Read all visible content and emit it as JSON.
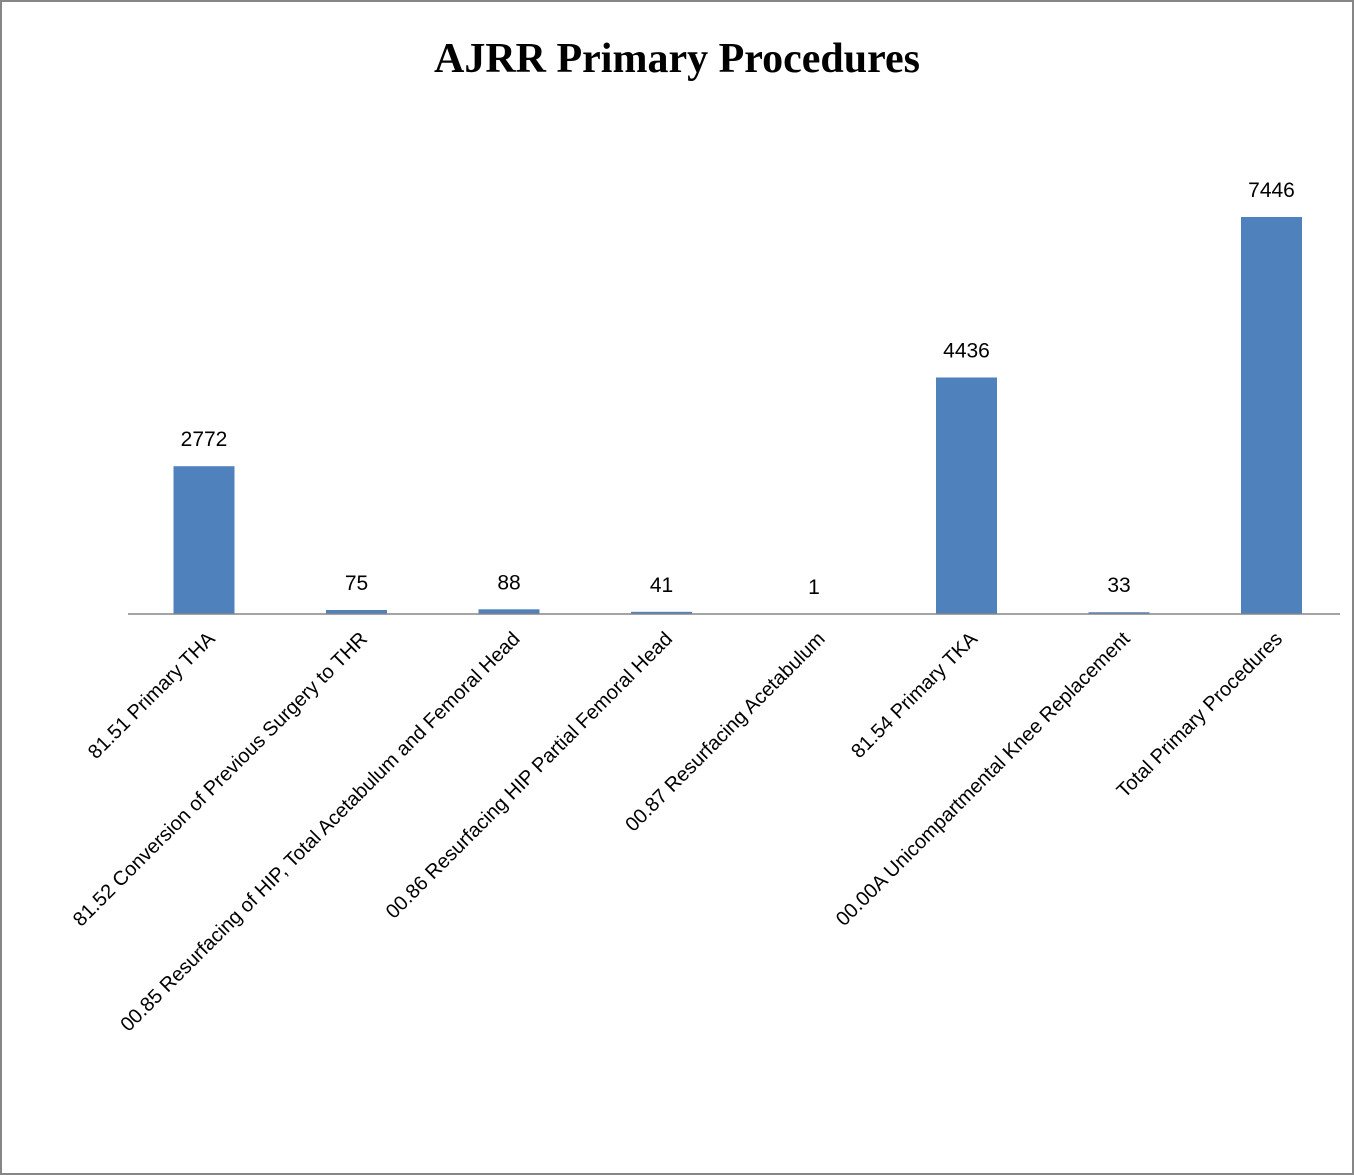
{
  "chart_data": {
    "type": "bar",
    "title": "AJRR Primary Procedures",
    "categories": [
      "81.51 Primary THA",
      "81.52 Conversion of Previous Surgery to THR",
      "00.85 Resurfacing of HIP, Total Acetabulum and Femoral Head",
      "00.86 Resurfacing HIP Partial Femoral Head",
      "00.87 Resurfacing Acetabulum",
      "81.54 Primary TKA",
      "00.00A Unicompartmental Knee Replacement",
      "Total Primary Procedures"
    ],
    "values": [
      2772,
      75,
      88,
      41,
      1,
      4436,
      33,
      7446
    ],
    "color": "#4f81bd"
  }
}
